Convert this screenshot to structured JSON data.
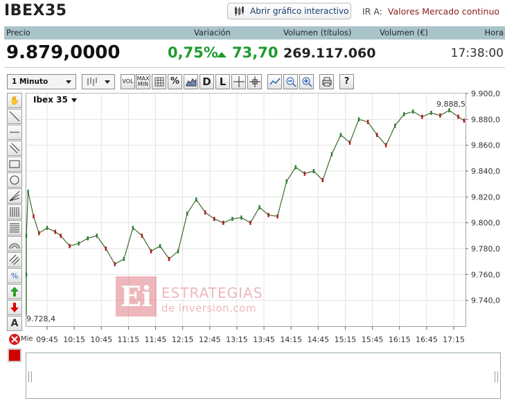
{
  "header": {
    "title": "IBEX35",
    "interactive_button": "Abrir gráfico interactivo",
    "ir_a_label": "IR A:",
    "ir_a_link": "Valores Mercado continuo"
  },
  "quote": {
    "headers": {
      "precio": "Precio",
      "variacion": "Variación",
      "volumen_titulos": "Volumen (títulos)",
      "volumen_eur": "Volumen (€)",
      "hora": "Hora"
    },
    "precio": "9.879,0000",
    "variacion_pct": "0,75%",
    "variacion_abs": "73,70",
    "volumen_titulos": "269.117.060",
    "hora": "17:38:00"
  },
  "toolbar": {
    "interval": "1 Minuto",
    "buttons": [
      "VOL",
      "MAX MIN",
      "grid",
      "%",
      "area",
      "D",
      "L",
      "crosshair",
      "cross",
      "line-tool",
      "zoom-out",
      "zoom-in",
      "print",
      "?"
    ]
  },
  "chart": {
    "instrument_label": "Ibex 35",
    "max_label": "9.888,5",
    "min_label": "9.728,4",
    "day_label": "Mie",
    "watermark_line1": "ESTRATEGIAS",
    "watermark_line2": "de inversion.com",
    "watermark_logo": "Ei"
  },
  "chart_data": {
    "type": "line",
    "title": "Ibex 35",
    "xlabel": "",
    "ylabel": "",
    "x_ticks": [
      "09:45",
      "10:15",
      "10:45",
      "11:15",
      "11:45",
      "12:15",
      "12:45",
      "13:15",
      "13:45",
      "14:15",
      "14:45",
      "15:15",
      "15:45",
      "16:15",
      "16:45",
      "17:15"
    ],
    "y_ticks": [
      "9.900,0",
      "9.880,0",
      "9.860,0",
      "9.840,0",
      "9.820,0",
      "9.800,0",
      "9.780,0",
      "9.760,0",
      "9.740,0"
    ],
    "ylim": [
      9720,
      9900
    ],
    "x": [
      "09:00",
      "09:08",
      "09:16",
      "09:24",
      "09:30",
      "09:36",
      "09:45",
      "09:54",
      "10:00",
      "10:10",
      "10:20",
      "10:30",
      "10:40",
      "10:50",
      "11:00",
      "11:10",
      "11:20",
      "11:30",
      "11:40",
      "11:50",
      "12:00",
      "12:10",
      "12:20",
      "12:30",
      "12:40",
      "12:50",
      "13:00",
      "13:10",
      "13:20",
      "13:30",
      "13:40",
      "13:50",
      "14:00",
      "14:10",
      "14:20",
      "14:30",
      "14:40",
      "14:50",
      "15:00",
      "15:10",
      "15:20",
      "15:30",
      "15:40",
      "15:50",
      "16:00",
      "16:10",
      "16:20",
      "16:30",
      "16:40",
      "16:50",
      "17:00",
      "17:10",
      "17:20",
      "17:38"
    ],
    "values": [
      9728,
      9760,
      9790,
      9824,
      9805,
      9792,
      9796,
      9793,
      9790,
      9782,
      9784,
      9788,
      9790,
      9780,
      9768,
      9772,
      9796,
      9790,
      9778,
      9782,
      9772,
      9778,
      9807,
      9818,
      9808,
      9803,
      9800,
      9803,
      9804,
      9800,
      9812,
      9806,
      9805,
      9832,
      9843,
      9838,
      9840,
      9833,
      9853,
      9868,
      9862,
      9880,
      9878,
      9868,
      9860,
      9875,
      9884,
      9886,
      9882,
      9885,
      9883,
      9887,
      9882,
      9879
    ],
    "color": "#3a6a2a",
    "grid": true
  }
}
